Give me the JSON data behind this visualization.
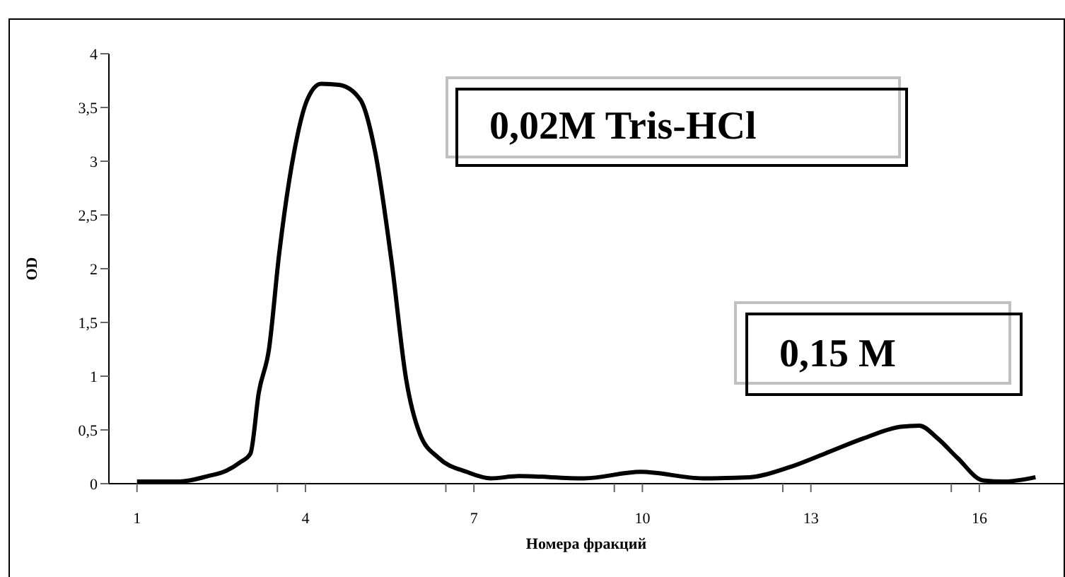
{
  "chart_data": {
    "type": "line",
    "xlabel": "Номера фракций",
    "ylabel": "OD",
    "annotations": [
      "0,02M Tris-HCl",
      "0,15 M"
    ],
    "series": [
      {
        "color": "#000000",
        "x": [
          1.0,
          1.76,
          2.26,
          2.59,
          2.84,
          3.02,
          3.17,
          3.35,
          3.53,
          3.8,
          4.03,
          4.28,
          4.6,
          4.98,
          5.24,
          5.54,
          5.79,
          6.04,
          6.37,
          6.87,
          7.3,
          7.8,
          8.96,
          9.97,
          11.08,
          11.91,
          12.6,
          13.25,
          13.93,
          14.6,
          14.93,
          15.26,
          15.61,
          16.07,
          16.44,
          17.0
        ],
        "values": [
          0.02,
          0.02,
          0.07,
          0.12,
          0.2,
          0.28,
          0.85,
          1.25,
          2.13,
          3.09,
          3.57,
          3.72,
          3.71,
          3.57,
          3.09,
          2.04,
          0.98,
          0.46,
          0.24,
          0.11,
          0.05,
          0.07,
          0.05,
          0.11,
          0.05,
          0.06,
          0.15,
          0.28,
          0.42,
          0.53,
          0.54,
          0.42,
          0.24,
          0.03,
          0.02,
          0.06
        ]
      }
    ],
    "xlim": [
      0.5,
      17.5
    ],
    "xticks": [
      1,
      {
        "value": 3.5,
        "label": null
      },
      4,
      {
        "value": 6.5,
        "label": null
      },
      7,
      {
        "value": 9.5,
        "label": null
      },
      10,
      {
        "value": 12.5,
        "label": null
      },
      13,
      {
        "value": 15.5,
        "label": null
      },
      16
    ],
    "ylim": [
      0,
      4
    ],
    "yticks": [
      0,
      {
        "value": 0.5,
        "label": "0,5"
      },
      1,
      {
        "value": 1.5,
        "label": "1,5"
      },
      2,
      {
        "value": 2.5,
        "label": "2,5"
      },
      3,
      {
        "value": 3.5,
        "label": "3,5"
      },
      4
    ],
    "grid": false,
    "legend": false,
    "marker": "none",
    "line_style": "solid"
  }
}
